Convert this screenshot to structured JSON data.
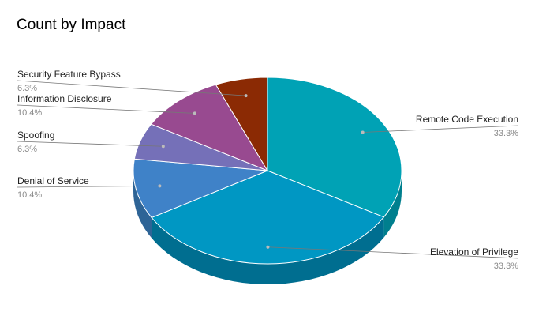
{
  "chart_data": {
    "type": "pie",
    "title": "Count by Impact",
    "three_d": true,
    "slices": [
      {
        "label": "Remote Code Execution",
        "value": 33.3,
        "percent_label": "33.3%",
        "color": "#00A2B5",
        "side_color": "#007F8E"
      },
      {
        "label": "Elevation of Privilege",
        "value": 33.3,
        "percent_label": "33.3%",
        "color": "#0097C3",
        "side_color": "#006E90"
      },
      {
        "label": "Denial of Service",
        "value": 10.4,
        "percent_label": "10.4%",
        "color": "#3F82C8",
        "side_color": "#2E6496"
      },
      {
        "label": "Spoofing",
        "value": 6.3,
        "percent_label": "6.3%",
        "color": "#7570B8",
        "side_color": "#55528A"
      },
      {
        "label": "Information Disclosure",
        "value": 10.4,
        "percent_label": "10.4%",
        "color": "#984A90",
        "side_color": "#70346A"
      },
      {
        "label": "Security Feature Bypass",
        "value": 6.3,
        "percent_label": "6.3%",
        "color": "#8B2A04",
        "side_color": "#661F03"
      }
    ],
    "legend": "callout-labels"
  }
}
